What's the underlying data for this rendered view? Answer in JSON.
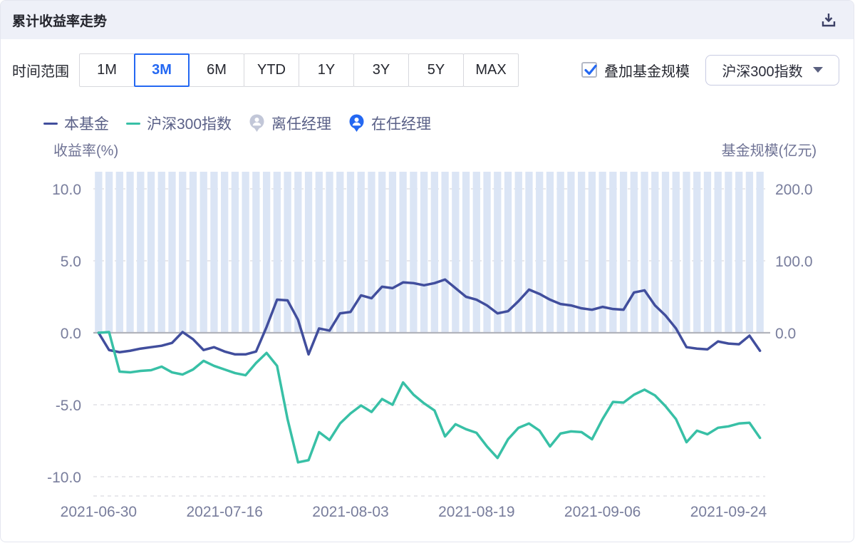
{
  "header": {
    "title": "累计收益率走势"
  },
  "controls": {
    "time_range_label": "时间范围",
    "ranges": [
      "1M",
      "3M",
      "6M",
      "YTD",
      "1Y",
      "3Y",
      "5Y",
      "MAX"
    ],
    "selected_range": "3M",
    "overlay_checkbox_label": "叠加基金规模",
    "overlay_checked": true,
    "benchmark_dropdown_value": "沪深300指数"
  },
  "legend": [
    {
      "label": "本基金",
      "type": "line",
      "color": "#414e9d"
    },
    {
      "label": "沪深300指数",
      "type": "line",
      "color": "#38c0a6"
    },
    {
      "label": "离任经理",
      "type": "badge",
      "color": "#c2c7d8"
    },
    {
      "label": "在任经理",
      "type": "badge",
      "color": "#2468f2"
    }
  ],
  "colors": {
    "accent_blue": "#2468f2",
    "fund_line": "#414e9d",
    "index_line": "#38c0a6",
    "scale_bar": "#dbe5f5",
    "zero_line": "#b2b4bc",
    "grid_line": "#e0e1e6"
  },
  "chart_data": {
    "type": "line",
    "left_axis": {
      "title": "收益率(%)",
      "tick_labels": [
        "10.0",
        "5.0",
        "0.0",
        "-5.0",
        "-10.0"
      ],
      "tick_values": [
        10,
        5,
        0,
        -5,
        -10
      ],
      "range": [
        -11.2,
        11.2
      ]
    },
    "right_axis": {
      "title": "基金规模(亿元)",
      "tick_labels": [
        "200.0",
        "100.0",
        "0.0"
      ],
      "tick_values": [
        200,
        100,
        0
      ]
    },
    "x_labels": [
      "2021-06-30",
      "2021-07-16",
      "2021-08-03",
      "2021-08-19",
      "2021-09-06",
      "2021-09-24"
    ],
    "x_label_indices": [
      0,
      12,
      24,
      36,
      48,
      60
    ],
    "grid": "dashed horizontal, solid zero line",
    "legend_position": "top-left above plot",
    "series": [
      {
        "name": "本基金",
        "color": "#414e9d",
        "values": [
          0.0,
          -1.2,
          -1.35,
          -1.25,
          -1.1,
          -1.0,
          -0.9,
          -0.7,
          0.05,
          -0.45,
          -1.2,
          -1.0,
          -1.3,
          -1.5,
          -1.5,
          -1.3,
          0.4,
          2.3,
          2.25,
          0.9,
          -1.5,
          0.3,
          0.15,
          1.35,
          1.45,
          2.6,
          2.4,
          3.2,
          3.1,
          3.5,
          3.45,
          3.3,
          3.45,
          3.7,
          3.1,
          2.5,
          2.3,
          1.9,
          1.35,
          1.5,
          2.2,
          3.0,
          2.7,
          2.3,
          2.0,
          1.9,
          1.7,
          1.6,
          1.8,
          1.65,
          1.6,
          2.8,
          2.95,
          1.9,
          1.2,
          0.3,
          -1.0,
          -1.1,
          -1.15,
          -0.6,
          -0.75,
          -0.8,
          -0.2,
          -1.25
        ]
      },
      {
        "name": "沪深300指数",
        "color": "#38c0a6",
        "values": [
          0.0,
          0.05,
          -2.7,
          -2.75,
          -2.65,
          -2.6,
          -2.35,
          -2.75,
          -2.9,
          -2.55,
          -1.95,
          -2.3,
          -2.55,
          -2.8,
          -2.95,
          -2.1,
          -1.4,
          -2.3,
          -6.0,
          -9.0,
          -8.85,
          -6.9,
          -7.45,
          -6.3,
          -5.6,
          -5.05,
          -5.5,
          -4.6,
          -5.0,
          -3.45,
          -4.3,
          -4.9,
          -5.4,
          -7.2,
          -6.35,
          -6.7,
          -6.95,
          -7.9,
          -8.7,
          -7.4,
          -6.6,
          -6.3,
          -6.8,
          -7.9,
          -7.0,
          -6.85,
          -6.9,
          -7.4,
          -6.0,
          -4.8,
          -4.85,
          -4.3,
          -3.95,
          -4.35,
          -5.1,
          -6.0,
          -7.6,
          -6.8,
          -7.05,
          -6.6,
          -6.5,
          -6.3,
          -6.25,
          -7.3
        ]
      }
    ],
    "fund_scale_bars": {
      "name": "基金规模",
      "color": "#dbe5f5",
      "count": 64,
      "value_estimate": 225,
      "clipped_at_top": true,
      "note": "constant bars filling from chart top down to the 0 line (value exceeds 200 axis tick)"
    }
  }
}
